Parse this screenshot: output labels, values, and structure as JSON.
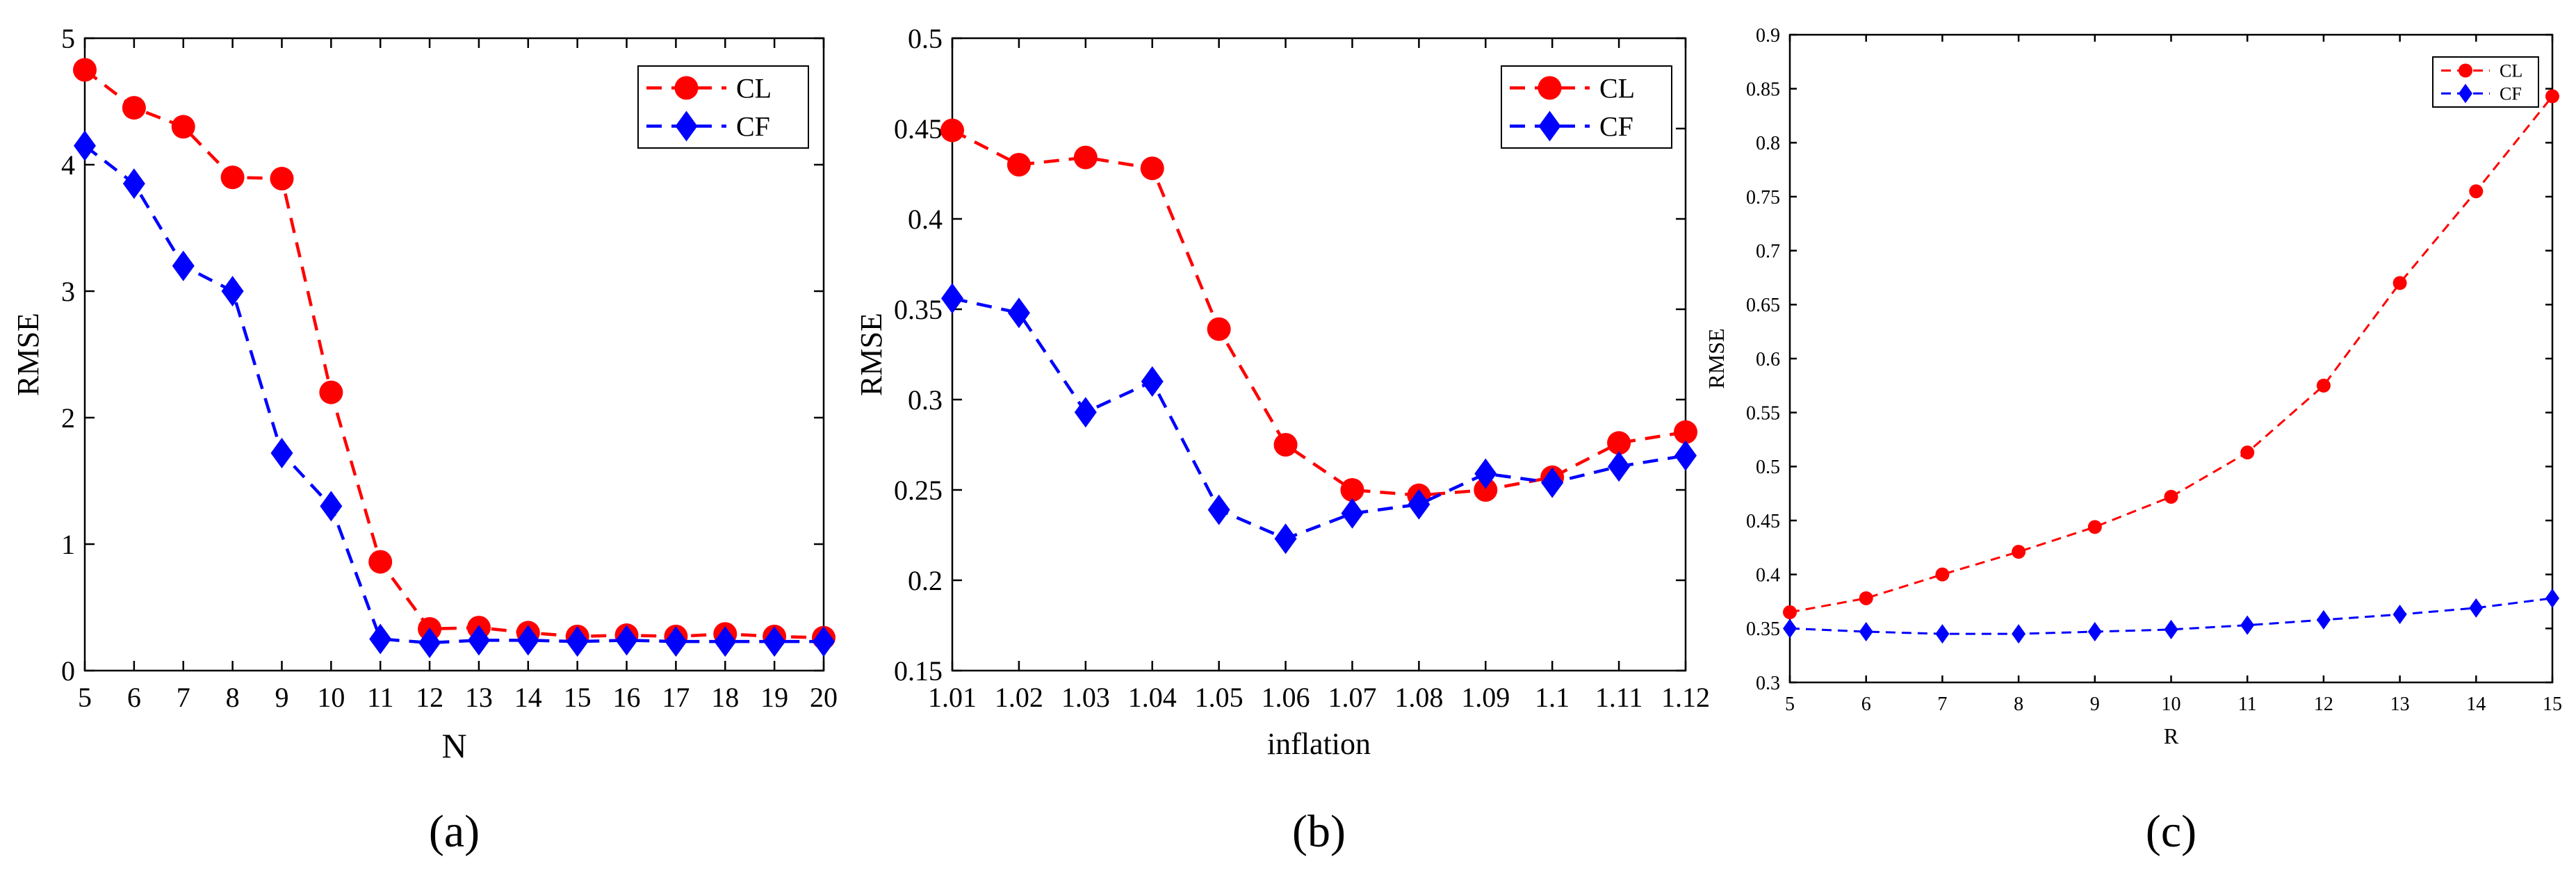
{
  "chart_data": [
    {
      "type": "line",
      "panel_label": "(a)",
      "xlabel": "N",
      "ylabel": "RMSE",
      "x": [
        5,
        6,
        7,
        8,
        9,
        10,
        11,
        12,
        13,
        14,
        15,
        16,
        17,
        18,
        19,
        20
      ],
      "x_tick_labels": [
        "5",
        "6",
        "7",
        "8",
        "9",
        "10",
        "11",
        "12",
        "13",
        "14",
        "15",
        "16",
        "17",
        "18",
        "19",
        "20"
      ],
      "xlim": [
        5,
        20
      ],
      "ylim": [
        0,
        5
      ],
      "y_ticks": [
        0,
        1,
        2,
        3,
        4,
        5
      ],
      "y_tick_labels": [
        "0",
        "1",
        "2",
        "3",
        "4",
        "5"
      ],
      "legend_position": "top-right",
      "series": [
        {
          "name": "CL",
          "color": "#ff0000",
          "marker": "circle",
          "values": [
            4.75,
            4.45,
            4.3,
            3.9,
            3.89,
            2.2,
            0.86,
            0.33,
            0.34,
            0.3,
            0.27,
            0.28,
            0.27,
            0.29,
            0.27,
            0.26
          ]
        },
        {
          "name": "CF",
          "color": "#0000ff",
          "marker": "diamond",
          "values": [
            4.15,
            3.85,
            3.2,
            3.0,
            1.72,
            1.3,
            0.25,
            0.22,
            0.24,
            0.24,
            0.23,
            0.24,
            0.23,
            0.23,
            0.23,
            0.23
          ]
        }
      ]
    },
    {
      "type": "line",
      "panel_label": "(b)",
      "xlabel": "inflation",
      "ylabel": "RMSE",
      "x": [
        1.01,
        1.02,
        1.03,
        1.04,
        1.05,
        1.06,
        1.07,
        1.08,
        1.09,
        1.1,
        1.11,
        1.12
      ],
      "x_tick_labels": [
        "1.01",
        "1.02",
        "1.03",
        "1.04",
        "1.05",
        "1.06",
        "1.07",
        "1.08",
        "1.09",
        "1.1",
        "1.11",
        "1.12"
      ],
      "xlim": [
        1.01,
        1.12
      ],
      "ylim": [
        0.15,
        0.5
      ],
      "y_ticks": [
        0.15,
        0.2,
        0.25,
        0.3,
        0.35,
        0.4,
        0.45,
        0.5
      ],
      "y_tick_labels": [
        "0.15",
        "0.2",
        "0.25",
        "0.3",
        "0.35",
        "0.4",
        "0.45",
        "0.5"
      ],
      "legend_position": "top-right",
      "series": [
        {
          "name": "CL",
          "color": "#ff0000",
          "marker": "circle",
          "values": [
            0.449,
            0.43,
            0.434,
            0.428,
            0.339,
            0.275,
            0.25,
            0.247,
            0.25,
            0.257,
            0.276,
            0.282
          ]
        },
        {
          "name": "CF",
          "color": "#0000ff",
          "marker": "diamond",
          "values": [
            0.356,
            0.348,
            0.293,
            0.31,
            0.239,
            0.223,
            0.237,
            0.242,
            0.259,
            0.254,
            0.263,
            0.269
          ]
        }
      ]
    },
    {
      "type": "line",
      "panel_label": "(c)",
      "xlabel": "R",
      "ylabel": "RMSE",
      "x": [
        5,
        6,
        7,
        8,
        9,
        10,
        11,
        12,
        13,
        14,
        15
      ],
      "x_tick_labels": [
        "5",
        "6",
        "7",
        "8",
        "9",
        "10",
        "11",
        "12",
        "13",
        "14",
        "15"
      ],
      "xlim": [
        5,
        15
      ],
      "ylim": [
        0.3,
        0.9
      ],
      "y_ticks": [
        0.3,
        0.35,
        0.4,
        0.45,
        0.5,
        0.55,
        0.6,
        0.65,
        0.7,
        0.75,
        0.8,
        0.85,
        0.9
      ],
      "y_tick_labels": [
        "0.3",
        "0.35",
        "0.4",
        "0.45",
        "0.5",
        "0.55",
        "0.6",
        "0.65",
        "0.7",
        "0.75",
        "0.8",
        "0.85",
        "0.9"
      ],
      "legend_position": "top-right",
      "series": [
        {
          "name": "CL",
          "color": "#ff0000",
          "marker": "circle",
          "values": [
            0.365,
            0.378,
            0.4,
            0.421,
            0.444,
            0.472,
            0.513,
            0.575,
            0.67,
            0.755,
            0.843
          ]
        },
        {
          "name": "CF",
          "color": "#0000ff",
          "marker": "diamond",
          "values": [
            0.35,
            0.347,
            0.345,
            0.345,
            0.347,
            0.349,
            0.353,
            0.358,
            0.363,
            0.369,
            0.378
          ]
        }
      ]
    }
  ]
}
